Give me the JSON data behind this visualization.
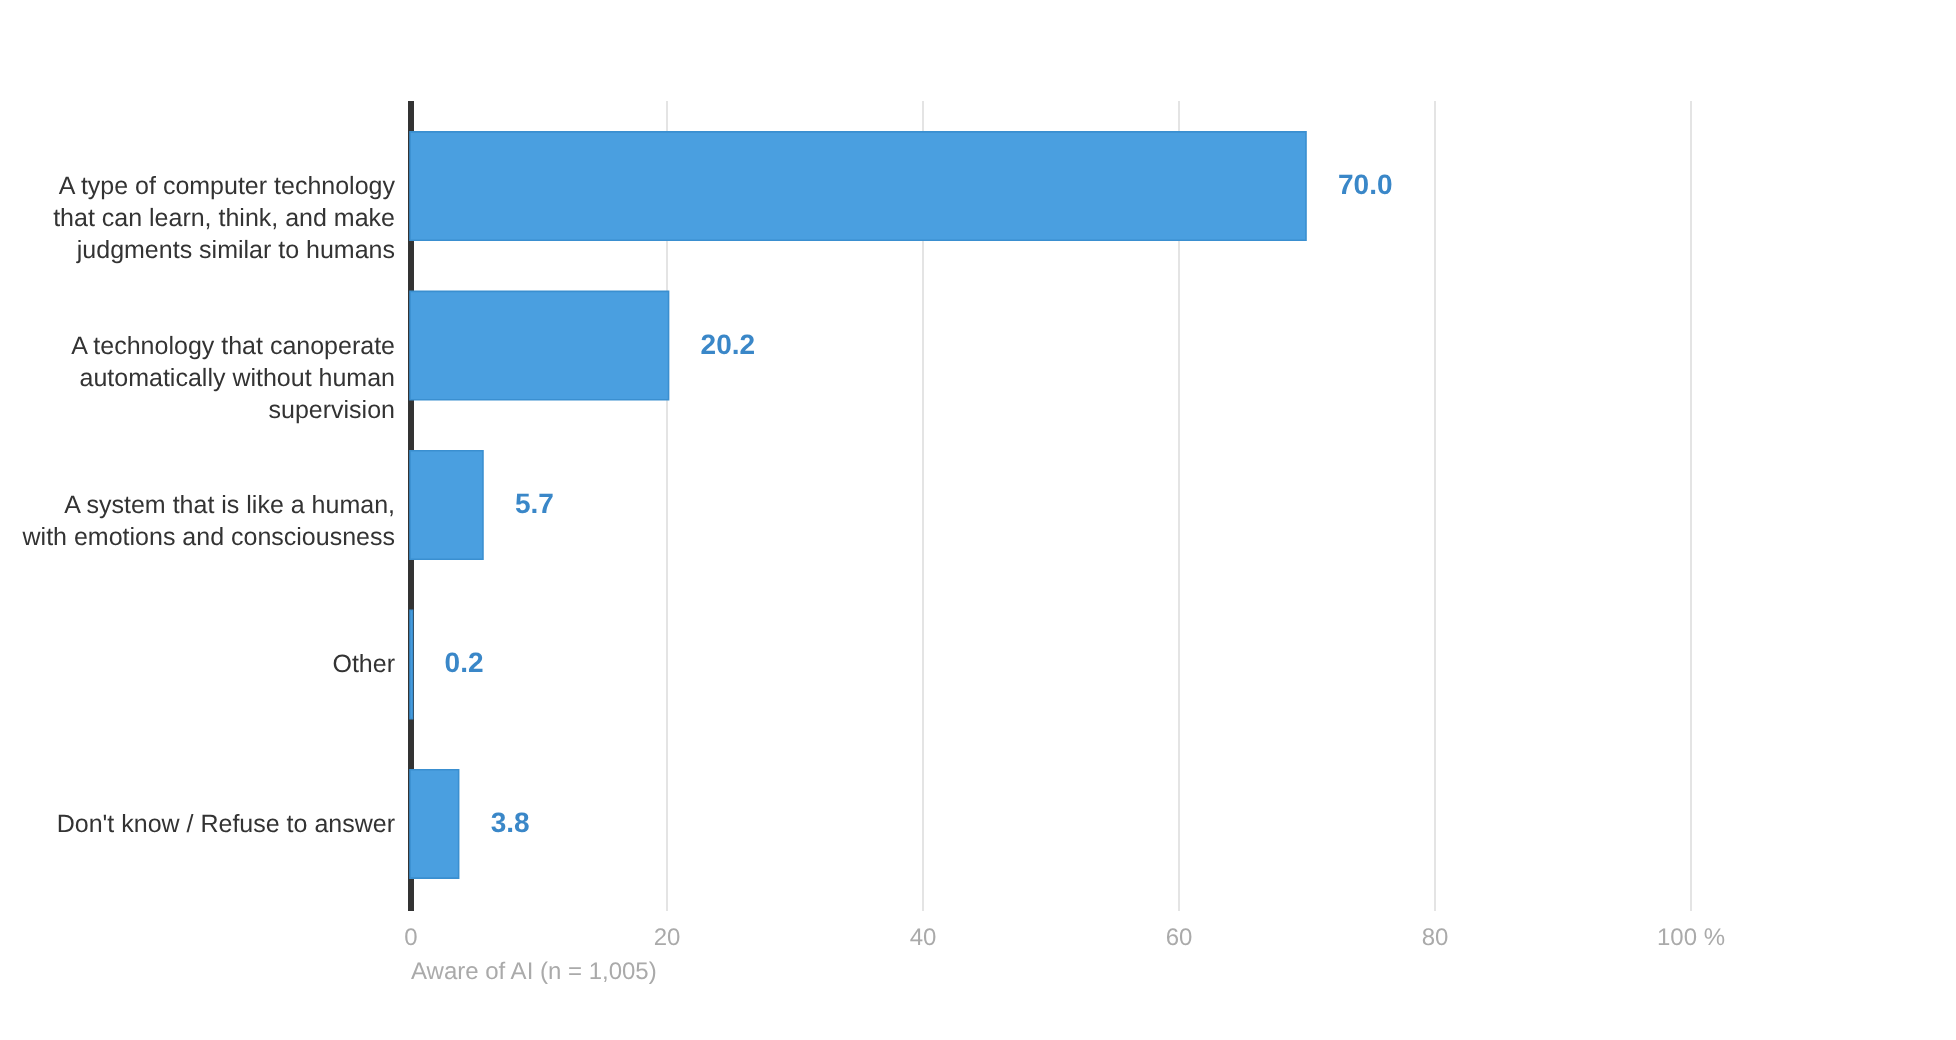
{
  "chart_data": {
    "type": "bar",
    "orientation": "horizontal",
    "categories": [
      "A type of computer technology that can learn, think, and make judgments similar to humans",
      "A technology that canoperate automatically without human supervision",
      "A system that is like a human, with emotions and consciousness",
      "Other",
      "Don't know / Refuse to answer"
    ],
    "values": [
      70.0,
      20.2,
      5.7,
      0.2,
      3.8
    ],
    "value_labels": [
      "70.0",
      "20.2",
      "5.7",
      "0.2",
      "3.8"
    ],
    "color": "#4a9fe0",
    "xlabel": "Aware of AI (n = 1,005)",
    "xlim": [
      0,
      100
    ],
    "xticks": [
      0,
      20,
      40,
      60,
      80,
      {
        "value": 100,
        "label": "100 %"
      }
    ],
    "grid": "x"
  }
}
